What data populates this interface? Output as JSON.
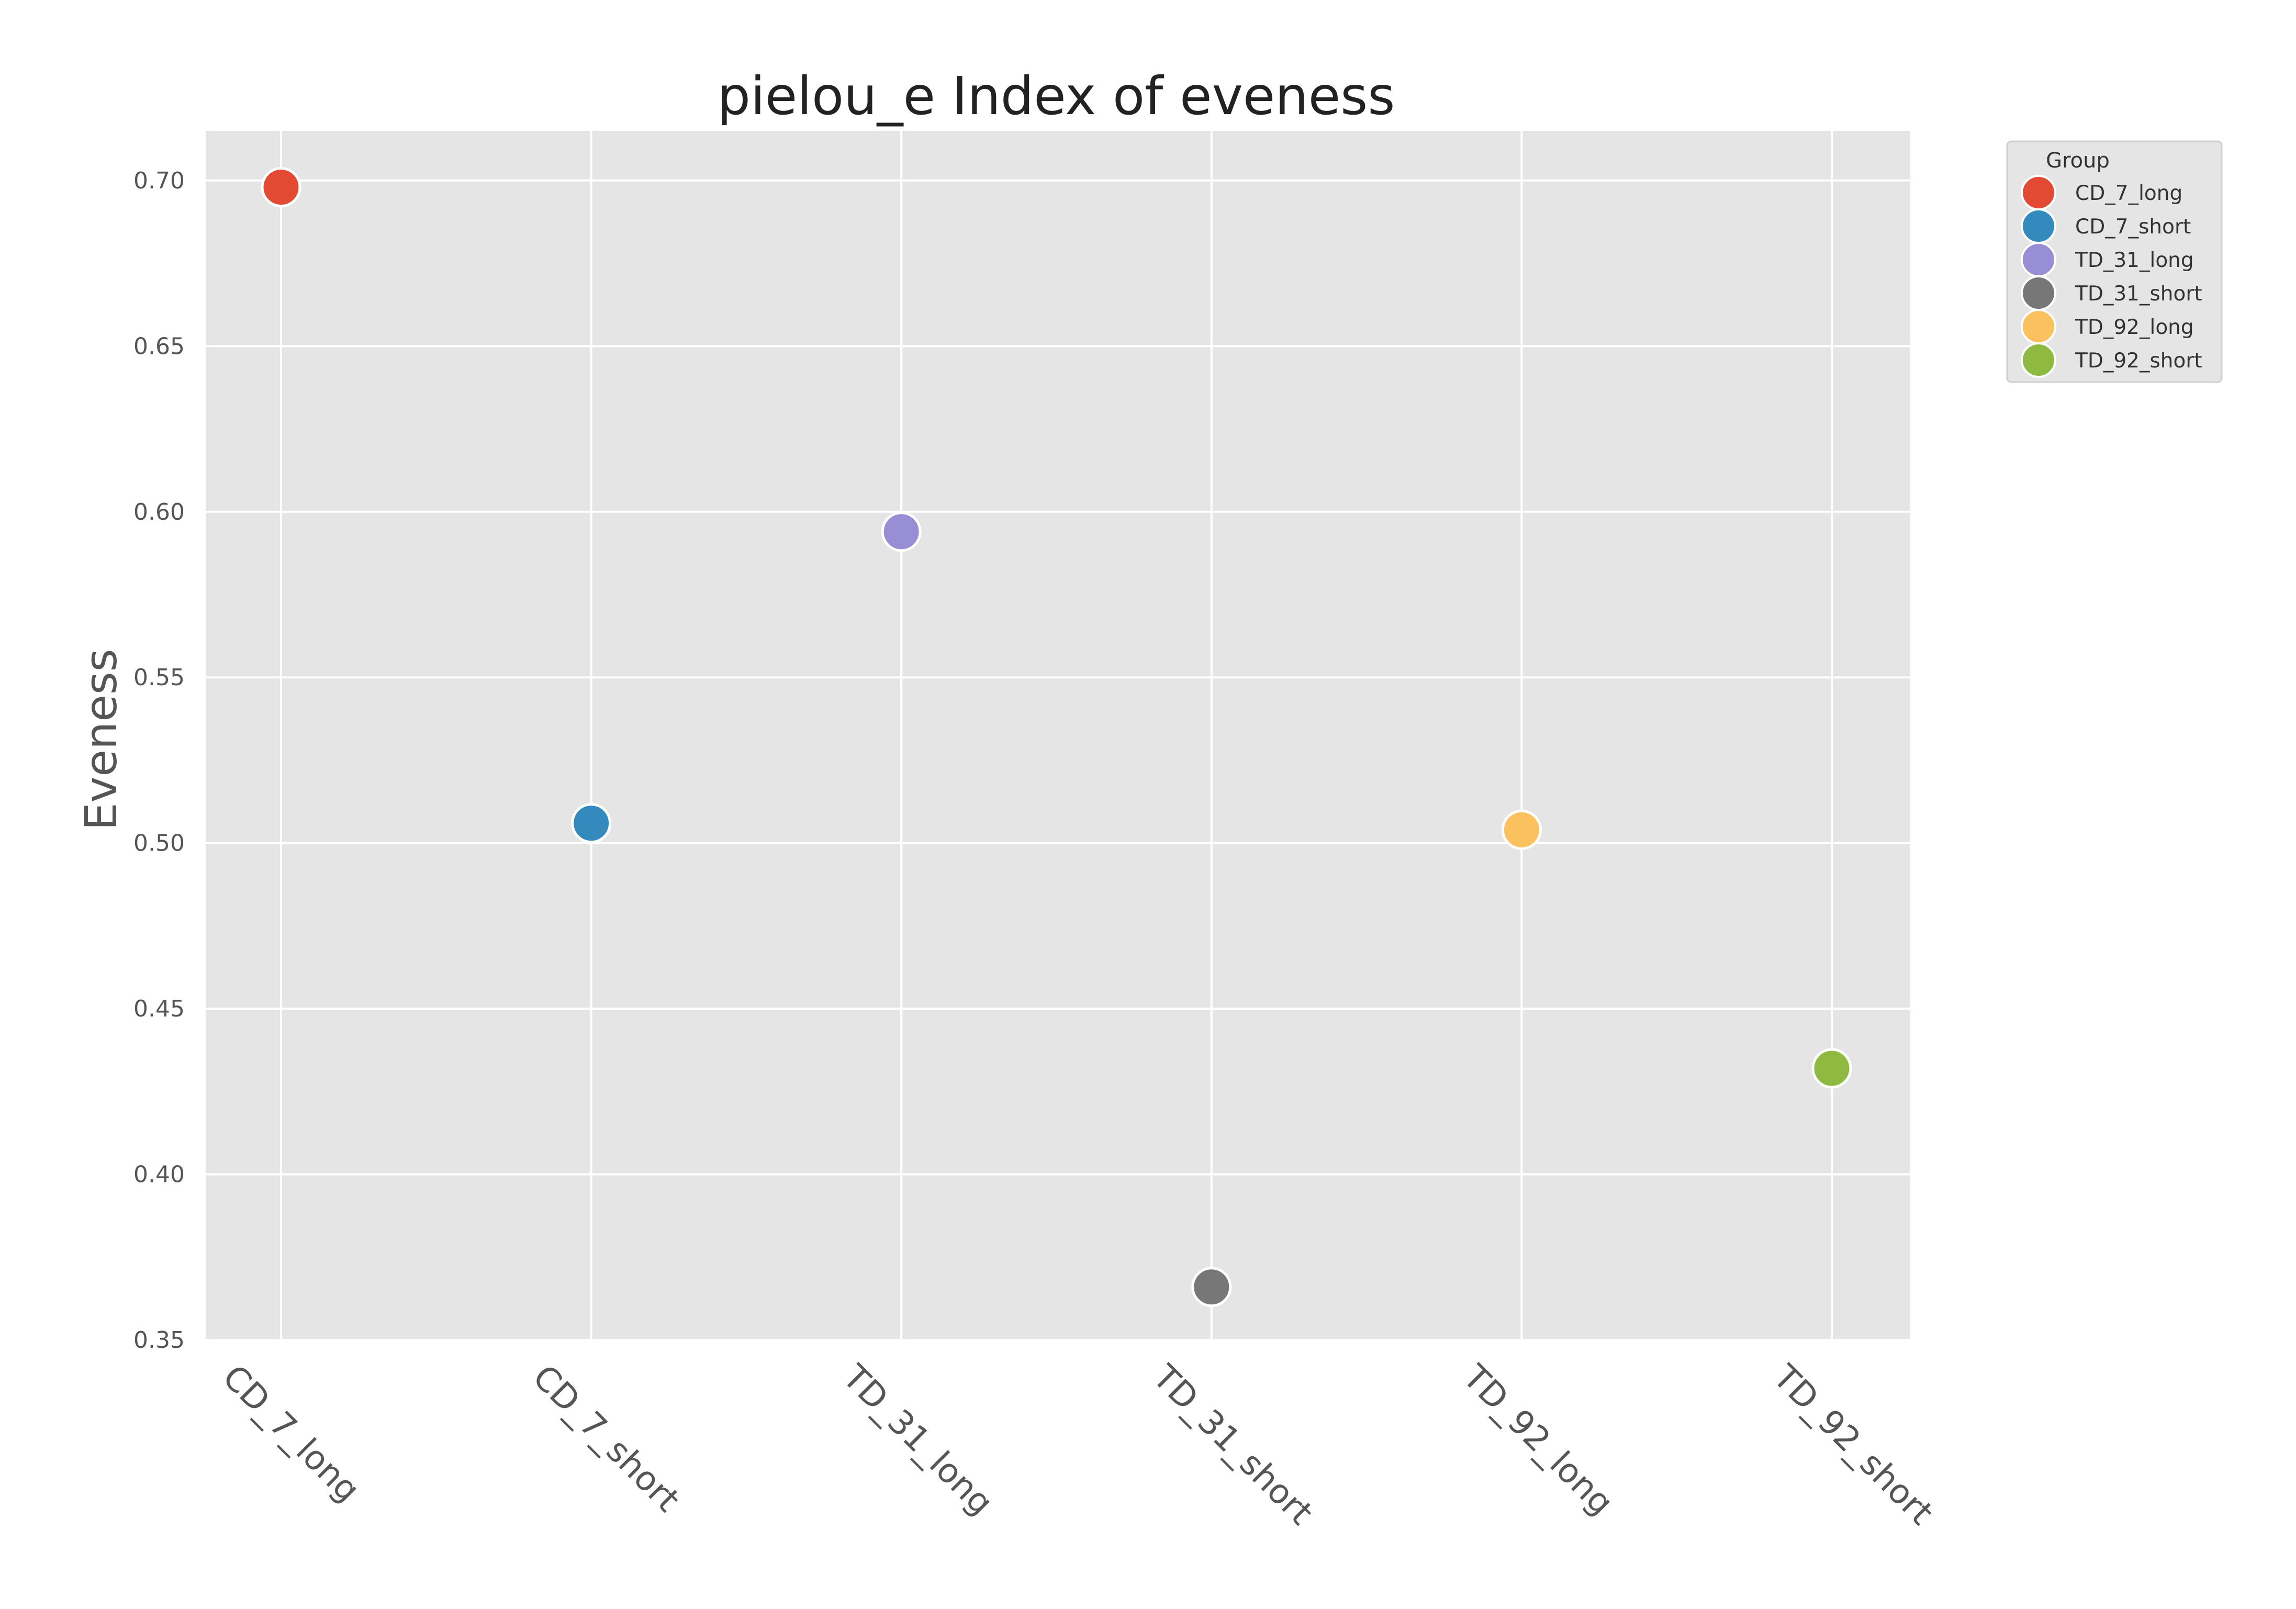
{
  "chart_data": {
    "type": "scatter",
    "title": "pielou_e Index of eveness",
    "xlabel": "",
    "ylabel": "Eveness",
    "categories": [
      "CD_7_long",
      "CD_7_short",
      "TD_31_long",
      "TD_31_short",
      "TD_92_long",
      "TD_92_short"
    ],
    "series": [
      {
        "name": "CD_7_long",
        "x": "CD_7_long",
        "y": 0.698,
        "color": "#E24A33"
      },
      {
        "name": "CD_7_short",
        "x": "CD_7_short",
        "y": 0.506,
        "color": "#348ABD"
      },
      {
        "name": "TD_31_long",
        "x": "TD_31_long",
        "y": 0.594,
        "color": "#988ED5"
      },
      {
        "name": "TD_31_short",
        "x": "TD_31_short",
        "y": 0.366,
        "color": "#777777"
      },
      {
        "name": "TD_92_long",
        "x": "TD_92_long",
        "y": 0.504,
        "color": "#FBC15E"
      },
      {
        "name": "TD_92_short",
        "x": "TD_92_short",
        "y": 0.432,
        "color": "#8EBA42"
      }
    ],
    "ylim": [
      0.35,
      0.715
    ],
    "yticks": [
      0.35,
      0.4,
      0.45,
      0.5,
      0.55,
      0.6,
      0.65,
      0.7
    ],
    "ytick_labels": [
      "0.35",
      "0.40",
      "0.45",
      "0.50",
      "0.55",
      "0.60",
      "0.65",
      "0.70"
    ],
    "grid": true,
    "legend": {
      "title": "Group",
      "placement": "outside-top-right",
      "entries": [
        "CD_7_long",
        "CD_7_short",
        "TD_31_long",
        "TD_31_short",
        "TD_92_long",
        "TD_92_short"
      ]
    },
    "colors": {
      "plot_background": "#E5E5E5",
      "grid": "#FFFFFF",
      "text": "#555555",
      "title": "#222222"
    }
  }
}
